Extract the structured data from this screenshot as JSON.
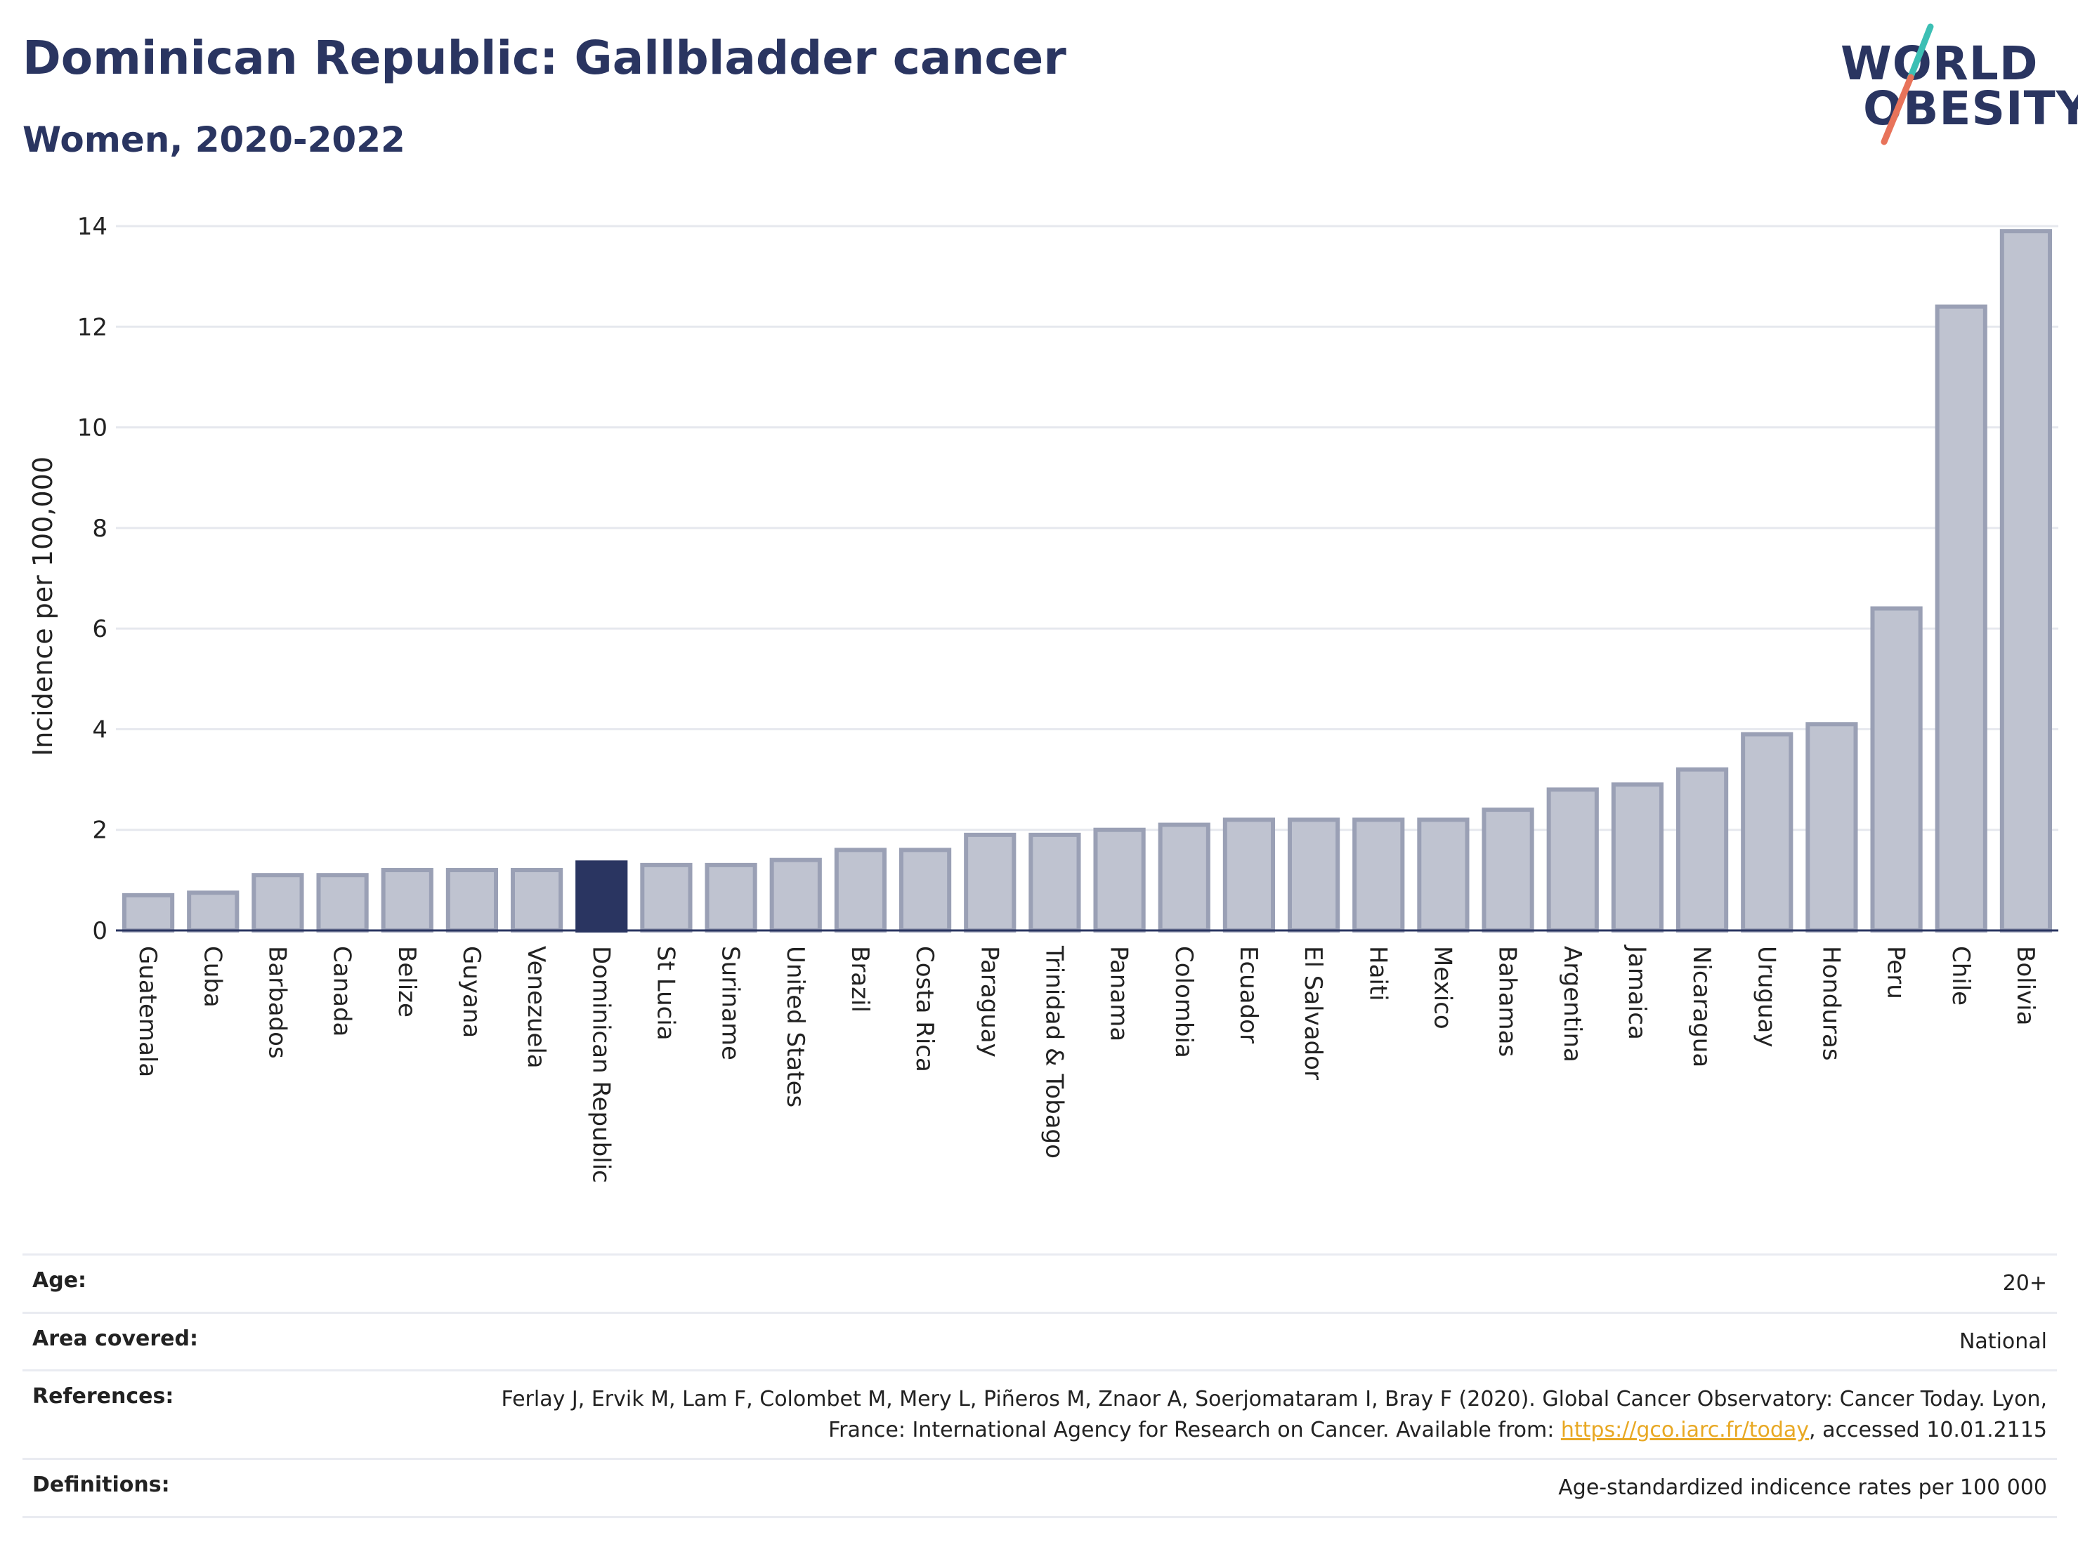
{
  "header": {
    "title": "Dominican Republic: Gallbladder cancer",
    "subtitle": "Women, 2020-2022"
  },
  "logo": {
    "line1": "WORLD",
    "line2": "OBESITY"
  },
  "colors": {
    "highlight": "#2a3561",
    "bar_fill": "#bfc3d0",
    "bar_stroke": "#9aa0b5",
    "logo_teal": "#3cbfb4",
    "logo_coral": "#e8735a",
    "link": "#e8a823"
  },
  "chart_data": {
    "type": "bar",
    "title": "Dominican Republic: Gallbladder cancer",
    "subtitle": "Women, 2020-2022",
    "ylabel": "Incidence per 100,000",
    "xlabel": "",
    "ylim": [
      0,
      14
    ],
    "yticks": [
      0,
      2,
      4,
      6,
      8,
      10,
      12,
      14
    ],
    "grid": true,
    "highlight_category": "Dominican Republic",
    "categories": [
      "Guatemala",
      "Cuba",
      "Barbados",
      "Canada",
      "Belize",
      "Guyana",
      "Venezuela",
      "Dominican Republic",
      "St Lucia",
      "Suriname",
      "United States",
      "Brazil",
      "Costa Rica",
      "Paraguay",
      "Trinidad & Tobago",
      "Panama",
      "Colombia",
      "Ecuador",
      "El Salvador",
      "Haiti",
      "Mexico",
      "Bahamas",
      "Argentina",
      "Jamaica",
      "Nicaragua",
      "Uruguay",
      "Honduras",
      "Peru",
      "Chile",
      "Bolivia"
    ],
    "values": [
      0.7,
      0.75,
      1.1,
      1.1,
      1.2,
      1.2,
      1.2,
      1.35,
      1.3,
      1.3,
      1.4,
      1.6,
      1.6,
      1.9,
      1.9,
      2.0,
      2.1,
      2.2,
      2.2,
      2.2,
      2.2,
      2.4,
      2.8,
      2.9,
      3.2,
      3.9,
      4.1,
      6.4,
      12.4,
      13.9
    ]
  },
  "info": {
    "rows": [
      {
        "label": "Age:",
        "value": "20+"
      },
      {
        "label": "Area covered:",
        "value": "National"
      },
      {
        "label": "References:",
        "value_before": "Ferlay J, Ervik M, Lam F, Colombet M, Mery L, Piñeros M, Znaor A, Soerjomataram I, Bray F (2020). Global Cancer Observatory: Cancer Today. Lyon, France: International Agency for Research on Cancer. Available from: ",
        "link": "https://gco.iarc.fr/today",
        "value_after": ", accessed 10.01.2115"
      },
      {
        "label": "Definitions:",
        "value": "Age-standardized indicence rates per 100 000"
      }
    ]
  }
}
